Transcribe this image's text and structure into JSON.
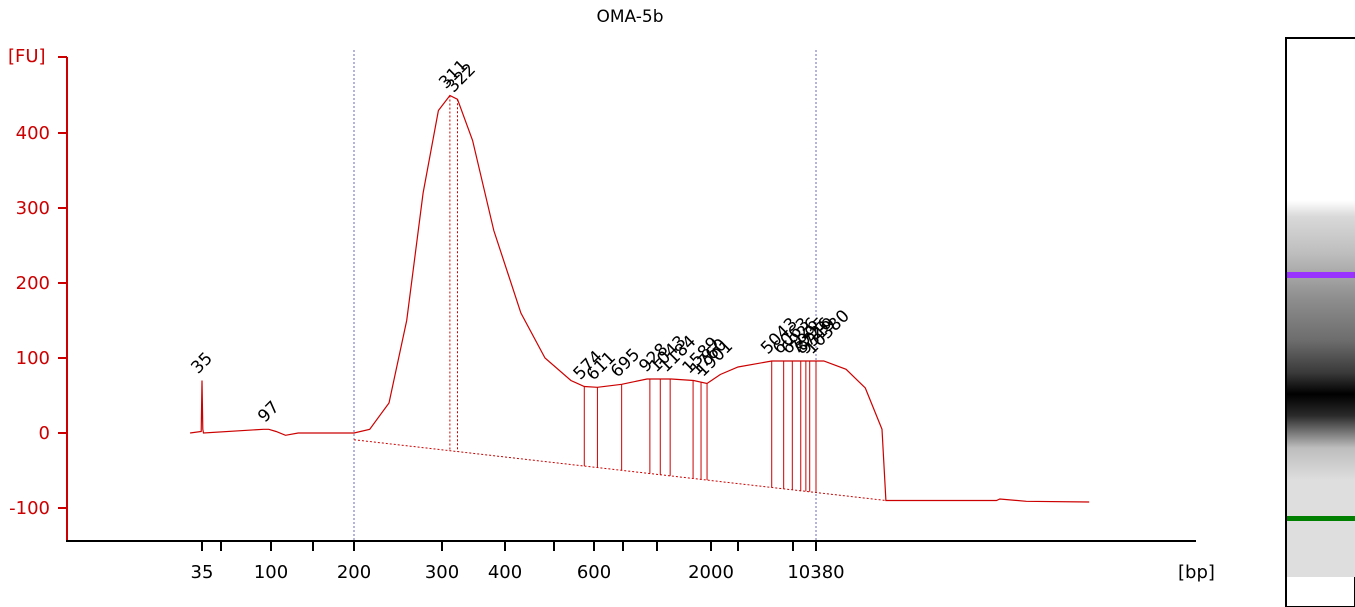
{
  "chart_data": {
    "type": "line",
    "title": "OMA-5b",
    "ylabel": "[FU]",
    "xlabel": "[bp]",
    "ylim": [
      -150,
      500
    ],
    "y_ticks": [
      {
        "value": 400,
        "label": "400"
      },
      {
        "value": 300,
        "label": "300"
      },
      {
        "value": 200,
        "label": "200"
      },
      {
        "value": 100,
        "label": "100"
      },
      {
        "value": 0,
        "label": "0"
      },
      {
        "value": -100,
        "label": "-100"
      }
    ],
    "x_ticks": [
      {
        "bp": 35,
        "label": "35"
      },
      {
        "bp": 50,
        "label": ""
      },
      {
        "bp": 100,
        "label": "100"
      },
      {
        "bp": 150,
        "label": ""
      },
      {
        "bp": 200,
        "label": "200"
      },
      {
        "bp": 300,
        "label": "300"
      },
      {
        "bp": 400,
        "label": "400"
      },
      {
        "bp": 500,
        "label": ""
      },
      {
        "bp": 600,
        "label": "600"
      },
      {
        "bp": 700,
        "label": ""
      },
      {
        "bp": 1000,
        "label": ""
      },
      {
        "bp": 2000,
        "label": "2000"
      },
      {
        "bp": 3000,
        "label": ""
      },
      {
        "bp": 7000,
        "label": ""
      },
      {
        "bp": 10380,
        "label": "10380"
      }
    ],
    "ladder_positions": [
      35,
      50,
      100,
      150,
      200,
      300,
      400,
      500,
      600,
      700,
      1000,
      2000,
      3000,
      7000,
      10380,
      17000
    ],
    "series": [
      {
        "color": "#cc0000",
        "points": [
          [
            28,
            0
          ],
          [
            34.5,
            2
          ],
          [
            35,
            70
          ],
          [
            35.5,
            5
          ],
          [
            36,
            0
          ],
          [
            90,
            5
          ],
          [
            97,
            5
          ],
          [
            105,
            2
          ],
          [
            115,
            -3
          ],
          [
            130,
            0
          ],
          [
            190,
            0
          ],
          [
            200,
            0
          ],
          [
            215,
            5
          ],
          [
            235,
            40
          ],
          [
            255,
            150
          ],
          [
            275,
            320
          ],
          [
            295,
            430
          ],
          [
            311,
            450
          ],
          [
            322,
            445
          ],
          [
            345,
            390
          ],
          [
            380,
            270
          ],
          [
            430,
            160
          ],
          [
            480,
            100
          ],
          [
            540,
            70
          ],
          [
            574,
            62
          ],
          [
            611,
            61
          ],
          [
            695,
            65
          ],
          [
            900,
            72
          ],
          [
            1200,
            72
          ],
          [
            1600,
            70
          ],
          [
            1901,
            66
          ],
          [
            2300,
            78
          ],
          [
            3000,
            88
          ],
          [
            5043,
            96
          ],
          [
            8000,
            96
          ],
          [
            11000,
            96
          ],
          [
            13000,
            85
          ],
          [
            15000,
            60
          ],
          [
            17000,
            5
          ],
          [
            17500,
            -90
          ],
          [
            40000,
            -90
          ],
          [
            41000,
            -88
          ],
          [
            50000,
            -91
          ],
          [
            80000,
            -92
          ]
        ]
      }
    ],
    "peaks": [
      {
        "label": "35",
        "bp": 35,
        "value": 70,
        "color": "#008000"
      },
      {
        "label": "97",
        "bp": 97,
        "value": 5,
        "color": "#000000"
      },
      {
        "label": "311",
        "bp": 311,
        "value": 450,
        "color": "#000000"
      },
      {
        "label": "322",
        "bp": 322,
        "value": 445,
        "color": "#000000"
      },
      {
        "label": "574",
        "bp": 574,
        "value": 62,
        "color": "#000000"
      },
      {
        "label": "611",
        "bp": 611,
        "value": 61,
        "color": "#000000"
      },
      {
        "label": "695",
        "bp": 695,
        "value": 65,
        "color": "#000000"
      },
      {
        "label": "928",
        "bp": 928,
        "value": 72,
        "color": "#000000"
      },
      {
        "label": "1043",
        "bp": 1043,
        "value": 72,
        "color": "#000000"
      },
      {
        "label": "1184",
        "bp": 1184,
        "value": 72,
        "color": "#000000"
      },
      {
        "label": "1589",
        "bp": 1589,
        "value": 70,
        "color": "#000000"
      },
      {
        "label": "1760",
        "bp": 1760,
        "value": 68,
        "color": "#000000"
      },
      {
        "label": "1901",
        "bp": 1901,
        "value": 66,
        "color": "#000000"
      },
      {
        "label": "5043",
        "bp": 5043,
        "value": 96,
        "color": "#000000"
      },
      {
        "label": "6063",
        "bp": 6063,
        "value": 96,
        "color": "#000000"
      },
      {
        "label": "6926",
        "bp": 6926,
        "value": 96,
        "color": "#000000"
      },
      {
        "label": "7995",
        "bp": 7995,
        "value": 96,
        "color": "#000000"
      },
      {
        "label": "8726",
        "bp": 8726,
        "value": 96,
        "color": "#000000"
      },
      {
        "label": "9319",
        "bp": 9319,
        "value": 96,
        "color": "#000000"
      },
      {
        "label": "10380",
        "bp": 10380,
        "value": 96,
        "color": "#9933ff"
      }
    ],
    "region_markers_bp": [
      200,
      10380
    ],
    "grid": false,
    "axis_color": "#cc0000",
    "gel_lane": {
      "upper_marker_color": "#9933ff",
      "lower_marker_color": "#008000"
    }
  }
}
